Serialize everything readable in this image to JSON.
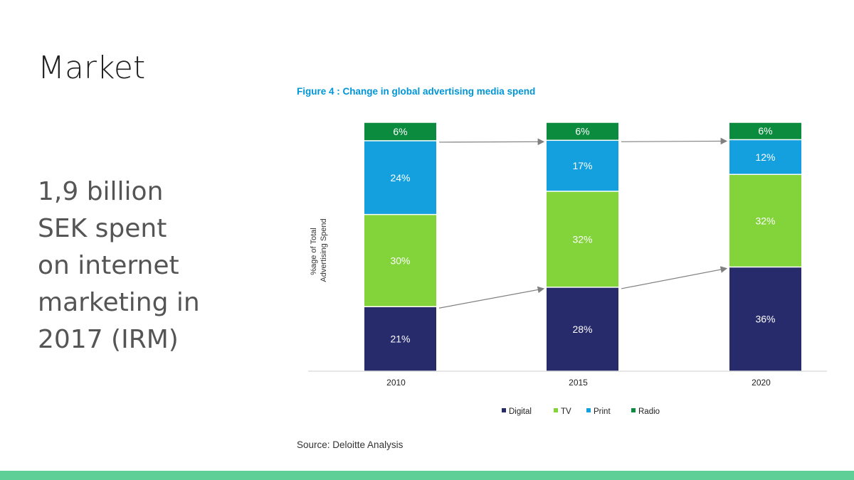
{
  "slide": {
    "title": "Market",
    "body_lines": [
      "1,9 billion",
      "SEK spent",
      "on internet",
      "marketing in",
      "2017 (IRM)"
    ]
  },
  "colors": {
    "accent_bar": "#5ecf97",
    "chart_title": "#0096d6",
    "Digital": "#272a6b",
    "TV": "#82d43a",
    "Print": "#14a0de",
    "Radio": "#0b8b3e"
  },
  "chart_data": {
    "type": "bar",
    "stacked": true,
    "title": "Figure 4 : Change in global advertising media spend",
    "ylabel_lines": [
      "%age of Total",
      "Advertising Spend"
    ],
    "xlabel": "",
    "categories": [
      "2010",
      "2015",
      "2020"
    ],
    "series": [
      {
        "name": "Digital",
        "values": [
          21,
          28,
          36
        ]
      },
      {
        "name": "TV",
        "values": [
          30,
          32,
          32
        ]
      },
      {
        "name": "Print",
        "values": [
          24,
          17,
          12
        ]
      },
      {
        "name": "Radio",
        "values": [
          6,
          6,
          6
        ]
      }
    ],
    "value_labels": [
      [
        "21%",
        "28%",
        "36%"
      ],
      [
        "30%",
        "32%",
        "32%"
      ],
      [
        "24%",
        "17%",
        "12%"
      ],
      [
        "6%",
        "6%",
        "6%"
      ]
    ],
    "legend": [
      "Digital",
      "TV",
      "Print",
      "Radio"
    ],
    "legend_position": "bottom",
    "grid": false,
    "trend_arrows": [
      {
        "series": "Print",
        "from": "2010",
        "to": "2015"
      },
      {
        "series": "Print",
        "from": "2015",
        "to": "2020"
      },
      {
        "series": "Digital",
        "from": "2010",
        "to": "2015"
      },
      {
        "series": "Digital",
        "from": "2015",
        "to": "2020"
      }
    ],
    "source": "Source: Deloitte Analysis"
  }
}
